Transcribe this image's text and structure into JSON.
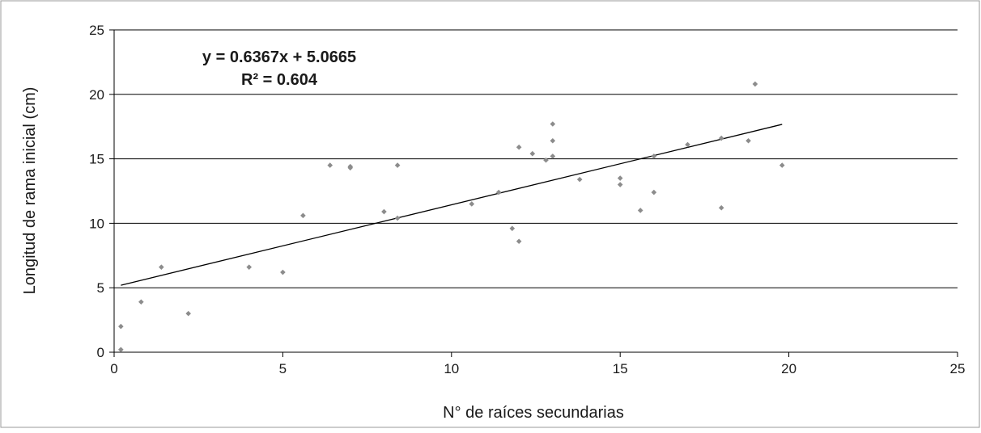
{
  "chart_data": {
    "type": "scatter",
    "title": "",
    "xlabel": "N° de raíces secundarias",
    "ylabel": "Longitud de rama inicial (cm)",
    "xlim": [
      0,
      25
    ],
    "ylim": [
      0,
      25
    ],
    "xticks": [
      0,
      5,
      10,
      15,
      20,
      25
    ],
    "yticks": [
      0,
      5,
      10,
      15,
      20,
      25
    ],
    "grid": "horizontal",
    "legend": "none",
    "colors": {
      "points": "#8c8c8c",
      "trendline": "#000000",
      "grid": "#000000"
    },
    "trendline": {
      "slope": 0.6367,
      "intercept": 5.0665,
      "x_range": [
        0.2,
        19.8
      ],
      "equation": "y = 0.6367x + 5.0665",
      "r2": "R² = 0.604"
    },
    "points": [
      {
        "x": 0.2,
        "y": 0.2
      },
      {
        "x": 0.2,
        "y": 2.0
      },
      {
        "x": 0.8,
        "y": 3.9
      },
      {
        "x": 1.4,
        "y": 6.6
      },
      {
        "x": 2.2,
        "y": 3.0
      },
      {
        "x": 4.0,
        "y": 6.6
      },
      {
        "x": 5.0,
        "y": 6.2
      },
      {
        "x": 5.6,
        "y": 10.6
      },
      {
        "x": 6.4,
        "y": 14.5
      },
      {
        "x": 7.0,
        "y": 14.4
      },
      {
        "x": 7.0,
        "y": 14.3
      },
      {
        "x": 8.0,
        "y": 10.9
      },
      {
        "x": 8.4,
        "y": 10.4
      },
      {
        "x": 8.4,
        "y": 14.5
      },
      {
        "x": 10.6,
        "y": 11.5
      },
      {
        "x": 11.4,
        "y": 12.4
      },
      {
        "x": 11.8,
        "y": 9.6
      },
      {
        "x": 12.0,
        "y": 8.6
      },
      {
        "x": 12.0,
        "y": 15.9
      },
      {
        "x": 12.4,
        "y": 15.4
      },
      {
        "x": 12.8,
        "y": 14.9
      },
      {
        "x": 13.0,
        "y": 15.2
      },
      {
        "x": 13.0,
        "y": 16.4
      },
      {
        "x": 13.0,
        "y": 17.7
      },
      {
        "x": 13.8,
        "y": 13.4
      },
      {
        "x": 15.0,
        "y": 13.5
      },
      {
        "x": 15.0,
        "y": 13.0
      },
      {
        "x": 15.6,
        "y": 11.0
      },
      {
        "x": 16.0,
        "y": 12.4
      },
      {
        "x": 16.0,
        "y": 15.2
      },
      {
        "x": 17.0,
        "y": 16.1
      },
      {
        "x": 18.0,
        "y": 16.6
      },
      {
        "x": 18.0,
        "y": 11.2
      },
      {
        "x": 18.8,
        "y": 16.4
      },
      {
        "x": 19.0,
        "y": 20.8
      },
      {
        "x": 19.8,
        "y": 14.5
      }
    ]
  }
}
